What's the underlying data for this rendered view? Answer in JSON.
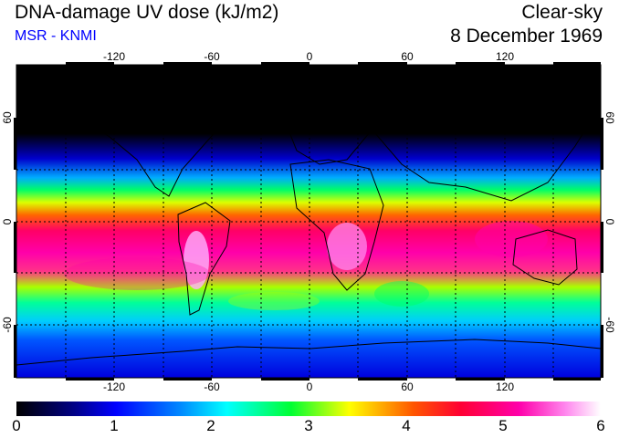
{
  "header": {
    "title": "DNA-damage UV dose (kJ/m2)",
    "subtitle": "MSR - KNMI",
    "condition": "Clear-sky",
    "date": "8 December 1969"
  },
  "axes": {
    "lon_ticks": [
      "-120",
      "-60",
      "0",
      "60",
      "120"
    ],
    "lat_ticks": [
      "60",
      "0",
      "-60"
    ]
  },
  "colorbar": {
    "ticks": [
      "0",
      "1",
      "2",
      "3",
      "4",
      "5",
      "6"
    ],
    "colors": [
      "#000000",
      "#0000aa",
      "#0077ff",
      "#00ffff",
      "#00ff44",
      "#ffff00",
      "#ff4400",
      "#ff0044",
      "#ff00aa",
      "#ffb0ff",
      "#ffffff"
    ]
  }
}
